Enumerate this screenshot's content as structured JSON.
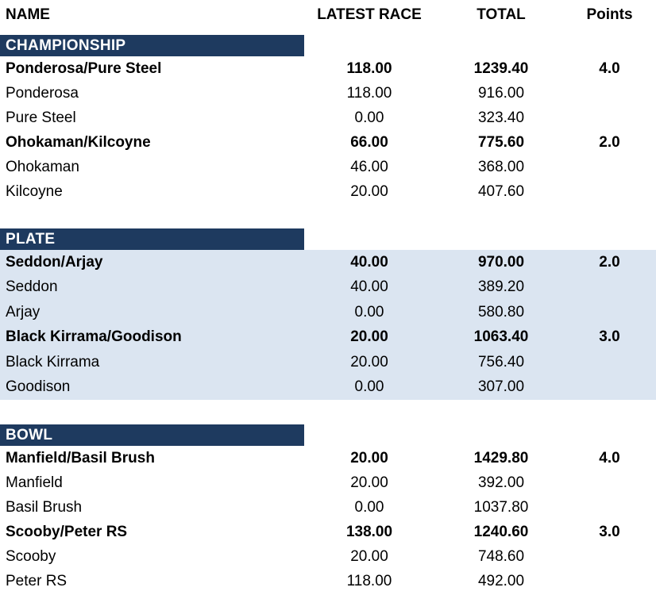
{
  "table": {
    "columns": {
      "name": "NAME",
      "latest_race": "LATEST RACE",
      "total": "TOTAL",
      "points": "Points"
    },
    "colors": {
      "section_bar_background": "#1E3A5F",
      "section_bar_text": "#FFFFFF",
      "plate_highlight_background": "#DBE5F1",
      "body_text": "#000000"
    },
    "sections": [
      {
        "title": "CHAMPIONSHIP",
        "rows": [
          {
            "name": "Ponderosa/Pure Steel",
            "latest": "118.00",
            "total": "1239.40",
            "points": "4.0"
          },
          {
            "name": "Ponderosa",
            "latest": "118.00",
            "total": "916.00",
            "points": ""
          },
          {
            "name": "Pure Steel",
            "latest": "0.00",
            "total": "323.40",
            "points": ""
          },
          {
            "name": "Ohokaman/Kilcoyne",
            "latest": "66.00",
            "total": "775.60",
            "points": "2.0"
          },
          {
            "name": "Ohokaman",
            "latest": "46.00",
            "total": "368.00",
            "points": ""
          },
          {
            "name": "Kilcoyne",
            "latest": "20.00",
            "total": "407.60",
            "points": ""
          }
        ]
      },
      {
        "title": "PLATE",
        "rows": [
          {
            "name": "Seddon/Arjay",
            "latest": "40.00",
            "total": "970.00",
            "points": "2.0"
          },
          {
            "name": "Seddon",
            "latest": "40.00",
            "total": "389.20",
            "points": ""
          },
          {
            "name": "Arjay",
            "latest": "0.00",
            "total": "580.80",
            "points": ""
          },
          {
            "name": "Black Kirrama/Goodison",
            "latest": "20.00",
            "total": "1063.40",
            "points": "3.0"
          },
          {
            "name": "Black Kirrama",
            "latest": "20.00",
            "total": "756.40",
            "points": ""
          },
          {
            "name": "Goodison",
            "latest": "0.00",
            "total": "307.00",
            "points": ""
          }
        ]
      },
      {
        "title": "BOWL",
        "rows": [
          {
            "name": "Manfield/Basil Brush",
            "latest": "20.00",
            "total": "1429.80",
            "points": "4.0"
          },
          {
            "name": "Manfield",
            "latest": "20.00",
            "total": "392.00",
            "points": ""
          },
          {
            "name": "Basil Brush",
            "latest": "0.00",
            "total": "1037.80",
            "points": ""
          },
          {
            "name": "Scooby/Peter RS",
            "latest": "138.00",
            "total": "1240.60",
            "points": "3.0"
          },
          {
            "name": "Scooby",
            "latest": "20.00",
            "total": "748.60",
            "points": ""
          },
          {
            "name": "Peter RS",
            "latest": "118.00",
            "total": "492.00",
            "points": ""
          }
        ]
      }
    ]
  }
}
